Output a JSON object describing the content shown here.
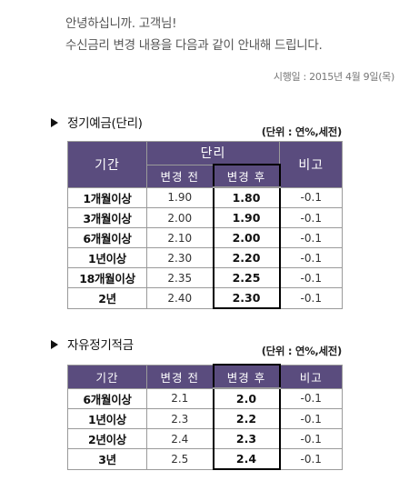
{
  "greeting": {
    "line1": "안녕하십니까. 고객님!",
    "line2": "수신금리 변경 내용을 다음과 같이 안내해 드립니다."
  },
  "effective_date": "시행일 : 2015년 4월 9일(목)",
  "section1": {
    "title": "정기예금(단리)",
    "unit": "(단위 : 연%,세전)",
    "headers": {
      "term": "기간",
      "group": "단리",
      "before": "변경 전",
      "after": "변경 후",
      "note": "비고"
    },
    "rows": [
      {
        "term": "1개월이상",
        "before": "1.90",
        "after": "1.80",
        "note": "-0.1"
      },
      {
        "term": "3개월이상",
        "before": "2.00",
        "after": "1.90",
        "note": "-0.1"
      },
      {
        "term": "6개월이상",
        "before": "2.10",
        "after": "2.00",
        "note": "-0.1"
      },
      {
        "term": "1년이상",
        "before": "2.30",
        "after": "2.20",
        "note": "-0.1"
      },
      {
        "term": "18개월이상",
        "before": "2.35",
        "after": "2.25",
        "note": "-0.1"
      },
      {
        "term": "2년",
        "before": "2.40",
        "after": "2.30",
        "note": "-0.1"
      }
    ]
  },
  "section2": {
    "title": "자유정기적금",
    "unit": "(단위 : 연%,세전)",
    "headers": {
      "term": "기간",
      "before": "변경 전",
      "after": "변경 후",
      "note": "비고"
    },
    "rows": [
      {
        "term": "6개월이상",
        "before": "2.1",
        "after": "2.0",
        "note": "-0.1"
      },
      {
        "term": "1년이상",
        "before": "2.3",
        "after": "2.2",
        "note": "-0.1"
      },
      {
        "term": "2년이상",
        "before": "2.4",
        "after": "2.3",
        "note": "-0.1"
      },
      {
        "term": "3년",
        "before": "2.5",
        "after": "2.4",
        "note": "-0.1"
      }
    ]
  },
  "colors": {
    "header_bg": "#5a4c7e",
    "header_text": "#ffffff",
    "grid": "#9a9a9a",
    "highlight_border": "#000000"
  },
  "icons": {
    "section_marker": "triangle-right-icon"
  }
}
